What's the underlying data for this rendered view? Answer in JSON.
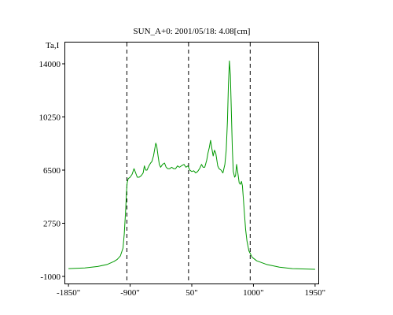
{
  "chart_data": {
    "type": "line",
    "title": "SUN_A+0: 2001/05/18: 4.08[cm]",
    "ylabel": "Ta,I",
    "xlabel": "",
    "xlim": [
      -1900,
      2000
    ],
    "ylim": [
      -1500,
      15500
    ],
    "xticks": [
      {
        "value": -1850,
        "label": "-1850\""
      },
      {
        "value": -900,
        "label": "-900\""
      },
      {
        "value": 50,
        "label": "50\""
      },
      {
        "value": 1000,
        "label": "1000\""
      },
      {
        "value": 1950,
        "label": "1950\""
      }
    ],
    "yticks": [
      {
        "value": 14000,
        "label": "14000"
      },
      {
        "value": 10250,
        "label": "10250"
      },
      {
        "value": 6500,
        "label": "6500"
      },
      {
        "value": 2750,
        "label": "2750"
      },
      {
        "value": -1000,
        "label": "-1000"
      }
    ],
    "vlines": [
      -950,
      0,
      950
    ],
    "grid": false,
    "series": [
      {
        "name": "",
        "color": "#009900",
        "points": [
          [
            -1850,
            -450
          ],
          [
            -1600,
            -400
          ],
          [
            -1400,
            -300
          ],
          [
            -1250,
            -150
          ],
          [
            -1150,
            50
          ],
          [
            -1100,
            200
          ],
          [
            -1050,
            450
          ],
          [
            -1010,
            1000
          ],
          [
            -990,
            2000
          ],
          [
            -970,
            3600
          ],
          [
            -955,
            5000
          ],
          [
            -945,
            5600
          ],
          [
            -930,
            5900
          ],
          [
            -900,
            6000
          ],
          [
            -870,
            6200
          ],
          [
            -840,
            6600
          ],
          [
            -815,
            6300
          ],
          [
            -790,
            6000
          ],
          [
            -760,
            6000
          ],
          [
            -730,
            6100
          ],
          [
            -700,
            6300
          ],
          [
            -680,
            6800
          ],
          [
            -660,
            6500
          ],
          [
            -640,
            6500
          ],
          [
            -610,
            6800
          ],
          [
            -585,
            7000
          ],
          [
            -565,
            7100
          ],
          [
            -540,
            7500
          ],
          [
            -520,
            8000
          ],
          [
            -505,
            8400
          ],
          [
            -490,
            8200
          ],
          [
            -470,
            7500
          ],
          [
            -450,
            6900
          ],
          [
            -430,
            6700
          ],
          [
            -400,
            6900
          ],
          [
            -370,
            7000
          ],
          [
            -345,
            6700
          ],
          [
            -320,
            6600
          ],
          [
            -290,
            6600
          ],
          [
            -260,
            6700
          ],
          [
            -230,
            6600
          ],
          [
            -200,
            6600
          ],
          [
            -170,
            6800
          ],
          [
            -140,
            6700
          ],
          [
            -110,
            6800
          ],
          [
            -70,
            6900
          ],
          [
            -40,
            6700
          ],
          [
            -10,
            6800
          ],
          [
            20,
            6500
          ],
          [
            50,
            6400
          ],
          [
            80,
            6450
          ],
          [
            110,
            6300
          ],
          [
            140,
            6400
          ],
          [
            170,
            6600
          ],
          [
            200,
            6900
          ],
          [
            225,
            6700
          ],
          [
            250,
            6700
          ],
          [
            280,
            7200
          ],
          [
            300,
            7700
          ],
          [
            320,
            8100
          ],
          [
            340,
            8600
          ],
          [
            360,
            8000
          ],
          [
            380,
            7500
          ],
          [
            400,
            7900
          ],
          [
            420,
            7700
          ],
          [
            450,
            6800
          ],
          [
            470,
            6600
          ],
          [
            500,
            6500
          ],
          [
            530,
            6300
          ],
          [
            560,
            6900
          ],
          [
            580,
            7900
          ],
          [
            600,
            10000
          ],
          [
            615,
            12500
          ],
          [
            630,
            14200
          ],
          [
            645,
            13200
          ],
          [
            660,
            10500
          ],
          [
            675,
            8000
          ],
          [
            690,
            6400
          ],
          [
            710,
            6000
          ],
          [
            725,
            6100
          ],
          [
            740,
            6900
          ],
          [
            760,
            6300
          ],
          [
            780,
            5600
          ],
          [
            800,
            5500
          ],
          [
            815,
            5700
          ],
          [
            830,
            5400
          ],
          [
            845,
            4500
          ],
          [
            860,
            3500
          ],
          [
            880,
            2300
          ],
          [
            900,
            1500
          ],
          [
            930,
            800
          ],
          [
            980,
            350
          ],
          [
            1050,
            100
          ],
          [
            1200,
            -150
          ],
          [
            1400,
            -350
          ],
          [
            1600,
            -450
          ],
          [
            1950,
            -500
          ]
        ]
      }
    ]
  }
}
